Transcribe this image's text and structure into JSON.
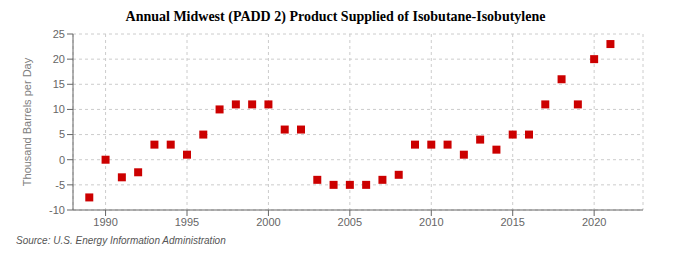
{
  "chart_data": {
    "type": "scatter",
    "title": "Annual Midwest (PADD 2) Product Supplied of Isobutane-Isobutylene",
    "ylabel": "Thousand Barrels per Day",
    "annotation": "Source: U.S. Energy Information Administration",
    "x": [
      1989,
      1990,
      1991,
      1992,
      1993,
      1994,
      1995,
      1996,
      1997,
      1998,
      1999,
      2000,
      2001,
      2002,
      2003,
      2004,
      2005,
      2006,
      2007,
      2008,
      2009,
      2010,
      2011,
      2012,
      2013,
      2014,
      2015,
      2016,
      2017,
      2018,
      2019,
      2020,
      2021
    ],
    "values": [
      -7.5,
      0,
      -3.5,
      -2.5,
      3,
      3,
      1,
      5,
      10,
      11,
      11,
      11,
      6,
      6,
      -4,
      -5,
      -5,
      -5,
      -4,
      -3,
      3,
      3,
      3,
      1,
      4,
      2,
      5,
      5,
      11,
      16,
      11,
      20,
      23
    ],
    "xlim": [
      1988,
      2023
    ],
    "ylim": [
      -10,
      25
    ],
    "xticks": [
      1990,
      1995,
      2000,
      2005,
      2010,
      2015,
      2020
    ],
    "yticks": [
      -10,
      -5,
      0,
      5,
      10,
      15,
      20,
      25
    ],
    "grid": true,
    "color": "#cc0000",
    "marker": "square"
  }
}
